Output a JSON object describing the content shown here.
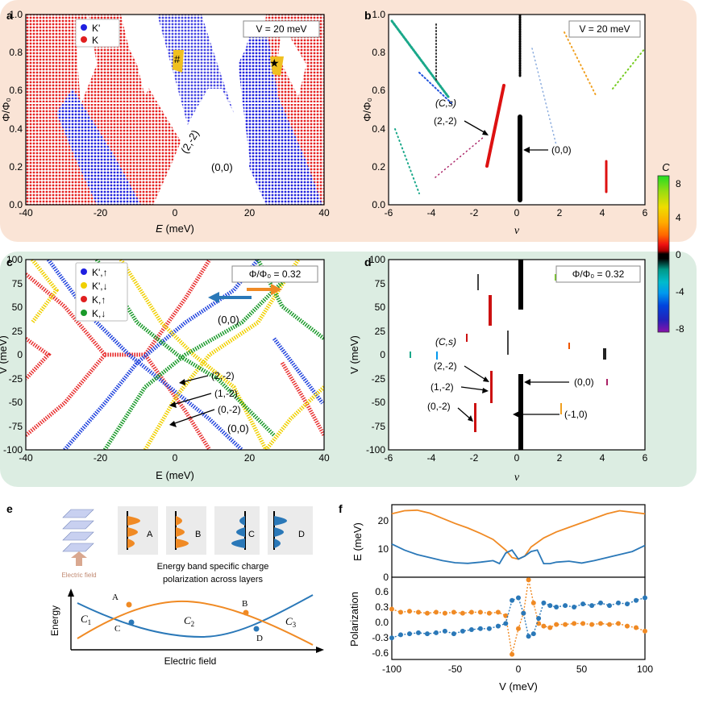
{
  "panels": {
    "a": {
      "letter": "a",
      "xlabel": "E (meV)",
      "xlabel_var": "E",
      "xlabel_unit": " (meV)",
      "ylabel": "Φ/Φ₀",
      "xticks": [
        "-40",
        "-20",
        "0",
        "20",
        "40"
      ],
      "yticks": [
        "0.0",
        "0.2",
        "0.4",
        "0.6",
        "0.8",
        "1.0"
      ],
      "inset": "V = 20 meV",
      "legend": [
        {
          "label": "K'",
          "color": "#1f1fe0"
        },
        {
          "label": "K",
          "color": "#e01f1f"
        }
      ],
      "annotations": [
        "#",
        "★",
        "(2,-2)",
        "(0,0)"
      ]
    },
    "b": {
      "letter": "b",
      "xlabel": "ν",
      "ylabel": "Φ/Φ₀",
      "xticks": [
        "-6",
        "-4",
        "-2",
        "0",
        "2",
        "4",
        "6"
      ],
      "yticks": [
        "0.0",
        "0.2",
        "0.4",
        "0.6",
        "0.8",
        "1.0"
      ],
      "inset": "V = 20 meV",
      "annotations": [
        "(C,s)",
        "(2,-2)",
        "(0,0)"
      ]
    },
    "colorbar": {
      "title": "C",
      "ticks": [
        "8",
        "4",
        "0",
        "-4",
        "-8"
      ],
      "colors": [
        "#22dd22",
        "#99dd11",
        "#eedd00",
        "#ffaa00",
        "#ff6600",
        "#ee1111",
        "#aa0000",
        "#000000",
        "#009988",
        "#00bbcc",
        "#0099ee",
        "#0044dd",
        "#2222bb",
        "#8811aa"
      ]
    },
    "c": {
      "letter": "c",
      "xlabel": "E (meV)",
      "ylabel": "V (meV)",
      "xticks": [
        "-40",
        "-20",
        "0",
        "20",
        "40"
      ],
      "yticks": [
        "100",
        "75",
        "50",
        "25",
        "0",
        "-25",
        "-50",
        "-75",
        "-100"
      ],
      "inset": "Φ/Φ₀ = 0.32",
      "legend": [
        {
          "label": "K',↑",
          "color": "#1f1fe0"
        },
        {
          "label": "K',↓",
          "color": "#f0d000"
        },
        {
          "label": "K,↑",
          "color": "#e01f1f"
        },
        {
          "label": "K,↓",
          "color": "#1a9a2a"
        }
      ],
      "annotations": [
        "(0,0)",
        "(2,-2)",
        "(1,-2)",
        "(0,-2)",
        "(0,0)"
      ]
    },
    "d": {
      "letter": "d",
      "xlabel": "ν",
      "ylabel": "V (meV)",
      "xticks": [
        "-6",
        "-4",
        "-2",
        "0",
        "2",
        "4",
        "6"
      ],
      "yticks": [
        "100",
        "75",
        "50",
        "25",
        "0",
        "-25",
        "-50",
        "-75",
        "-100"
      ],
      "inset": "Φ/Φ₀ = 0.32",
      "annotations": [
        "(C,s)",
        "(2,-2)",
        "(1,-2)",
        "(0,-2)",
        "(0,0)",
        "(-1,0)"
      ]
    },
    "e": {
      "letter": "e",
      "electric_field_label": "Electric field",
      "caption_line1": "Energy band specific charge",
      "caption_line2": "polarization across layers",
      "band_labels": [
        "A",
        "B",
        "C",
        "D"
      ],
      "energy_label": "Energy",
      "xaxis_label": "Electric field",
      "chern_labels": [
        "C",
        "C",
        "C"
      ],
      "chern_subs": [
        "1",
        "2",
        "3"
      ]
    },
    "f": {
      "letter": "f",
      "top_ylabel": "E (meV)",
      "bottom_ylabel": "Polarization",
      "xlabel": "V (meV)",
      "xticks": [
        "-100",
        "-50",
        "0",
        "50",
        "100"
      ],
      "top_yticks": [
        "20",
        "10",
        "0"
      ],
      "bottom_yticks": [
        "0.6",
        "0.3",
        "0.0",
        "-0.3",
        "-0.6"
      ]
    }
  },
  "chart_data": [
    {
      "type": "line",
      "title": "",
      "xlabel": "V (meV)",
      "ylabel": "E (meV)",
      "xlim": [
        -100,
        100
      ],
      "ylim": [
        0,
        24
      ],
      "series": [
        {
          "color": "#f08a24",
          "x": [
            -100,
            -90,
            -80,
            -70,
            -60,
            -50,
            -40,
            -30,
            -20,
            -10,
            -5,
            0,
            5,
            10,
            20,
            30,
            40,
            50,
            60,
            70,
            80,
            90,
            100
          ],
          "values": [
            21,
            22,
            22.2,
            21.2,
            19.5,
            17.8,
            16.3,
            14.5,
            12.5,
            9,
            6.5,
            6,
            7,
            10,
            13,
            15,
            16.5,
            18,
            19.5,
            21,
            22,
            21.5,
            21
          ]
        },
        {
          "color": "#2a78b8",
          "x": [
            -100,
            -90,
            -80,
            -70,
            -60,
            -50,
            -40,
            -30,
            -20,
            -15,
            -10,
            -5,
            0,
            5,
            10,
            15,
            20,
            25,
            30,
            40,
            50,
            60,
            70,
            80,
            90,
            100
          ],
          "values": [
            11,
            9,
            7.5,
            6.5,
            5.5,
            4.8,
            4.6,
            5,
            5.5,
            4.5,
            8,
            9,
            6,
            7,
            8.5,
            9,
            4.5,
            4.5,
            5,
            5.3,
            4.7,
            5.5,
            6.5,
            7.5,
            8.5,
            10.5
          ]
        }
      ]
    },
    {
      "type": "scatter",
      "title": "",
      "xlabel": "V (meV)",
      "ylabel": "Polarization",
      "xlim": [
        -100,
        100
      ],
      "ylim": [
        -0.8,
        0.8
      ],
      "series": [
        {
          "color": "#f08a24",
          "x": [
            -100,
            -93,
            -86,
            -79,
            -72,
            -65,
            -58,
            -51,
            -44,
            -37,
            -30,
            -23,
            -16,
            -10,
            -5,
            0,
            4,
            8,
            12,
            16,
            20,
            25,
            30,
            37,
            44,
            51,
            58,
            65,
            72,
            79,
            86,
            93,
            100
          ],
          "values": [
            0.18,
            0.12,
            0.14,
            0.12,
            0.1,
            0.12,
            0.1,
            0.12,
            0.1,
            0.12,
            0.12,
            0.1,
            0.12,
            0.05,
            -0.7,
            -0.2,
            0.1,
            0.75,
            0.3,
            -0.1,
            -0.15,
            -0.18,
            -0.12,
            -0.12,
            -0.1,
            -0.1,
            -0.12,
            -0.1,
            -0.12,
            -0.1,
            -0.15,
            -0.18,
            -0.25
          ]
        },
        {
          "color": "#2a78b8",
          "x": [
            -100,
            -93,
            -86,
            -79,
            -72,
            -65,
            -58,
            -51,
            -44,
            -37,
            -30,
            -23,
            -16,
            -10,
            -5,
            0,
            4,
            8,
            12,
            16,
            20,
            25,
            30,
            37,
            44,
            51,
            58,
            65,
            72,
            79,
            86,
            93,
            100
          ],
          "values": [
            -0.38,
            -0.32,
            -0.3,
            -0.28,
            -0.3,
            -0.28,
            -0.25,
            -0.3,
            -0.25,
            -0.22,
            -0.2,
            -0.2,
            -0.15,
            -0.1,
            0.35,
            0.4,
            0.1,
            -0.35,
            -0.3,
            0,
            0.3,
            0.25,
            0.22,
            0.25,
            0.22,
            0.28,
            0.25,
            0.3,
            0.25,
            0.3,
            0.28,
            0.35,
            0.4
          ]
        }
      ]
    }
  ]
}
